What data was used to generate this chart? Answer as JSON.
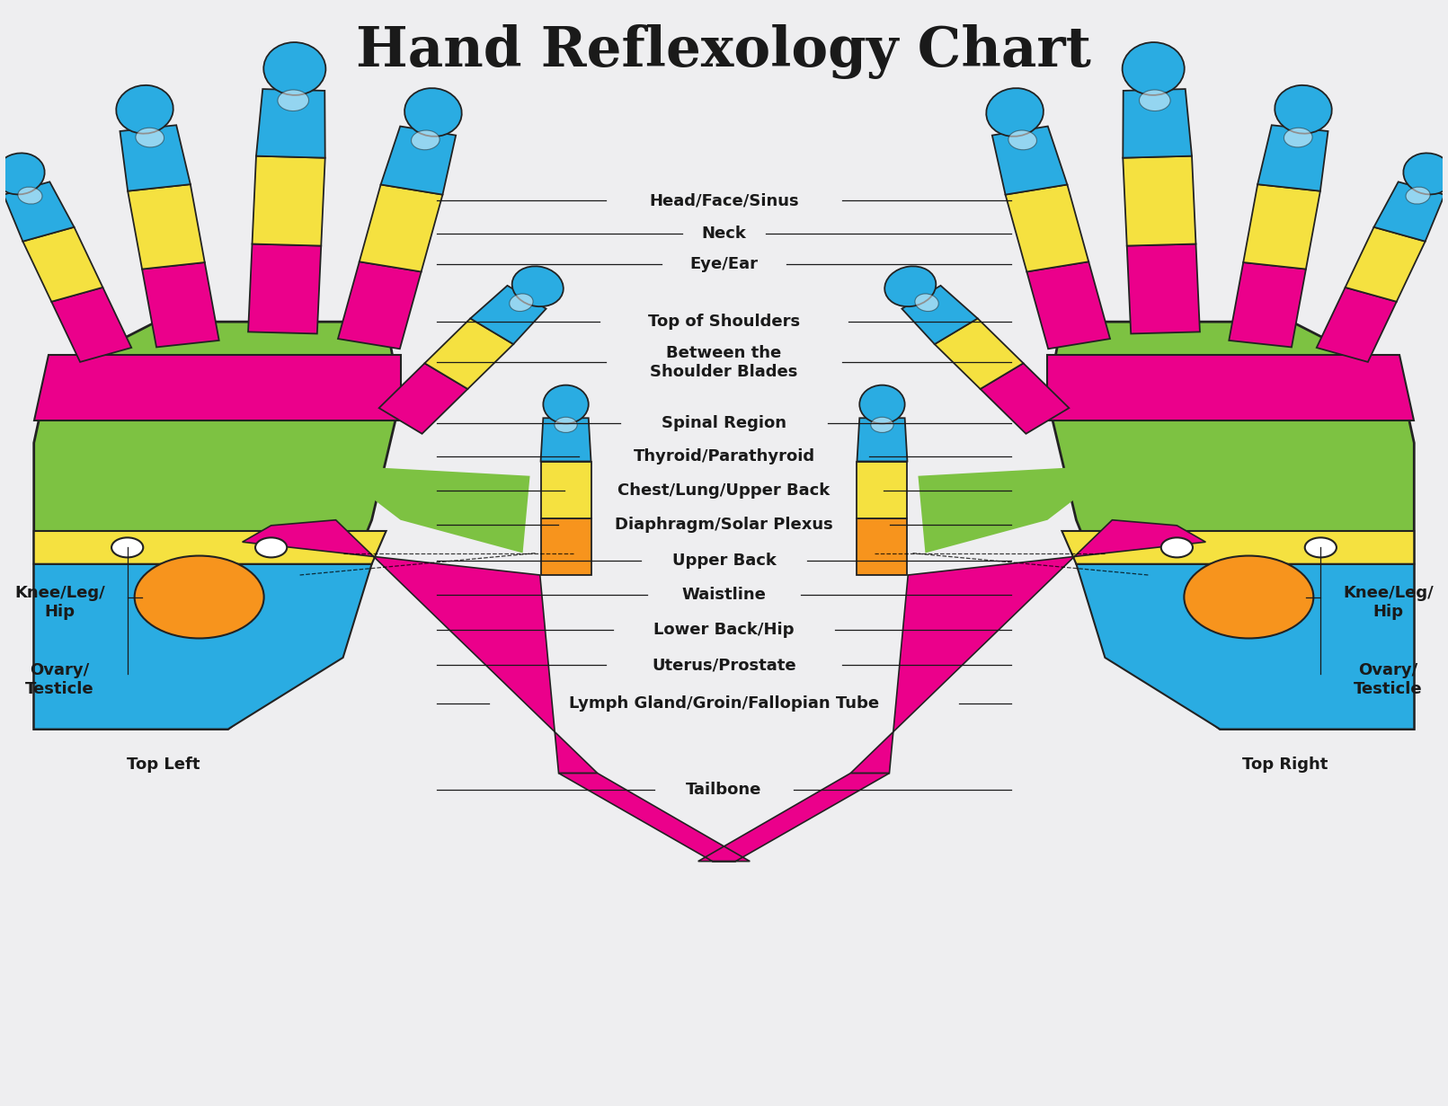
{
  "title": "Hand Reflexology Chart",
  "background_color": "#eeeef0",
  "title_fontsize": 44,
  "title_color": "#1a1a1a",
  "colors": {
    "blue": "#2aace2",
    "yellow": "#f5e140",
    "magenta": "#eb008b",
    "green": "#7dc242",
    "orange": "#f7941d",
    "outline": "#222222",
    "white": "#ffffff",
    "bg": "#eeeef0"
  },
  "labels_center": [
    [
      "Head/Face/Sinus",
      0.82
    ],
    [
      "Neck",
      0.79
    ],
    [
      "Eye/Ear",
      0.762
    ],
    [
      "Top of Shoulders",
      0.71
    ],
    [
      "Between the\nShoulder Blades",
      0.673
    ],
    [
      "Spinal Region",
      0.618
    ],
    [
      "Thyroid/Parathyroid",
      0.588
    ],
    [
      "Chest/Lung/Upper Back",
      0.557
    ],
    [
      "Diaphragm/Solar Plexus",
      0.526
    ],
    [
      "Upper Back",
      0.493
    ],
    [
      "Waistline",
      0.462
    ],
    [
      "Lower Back/Hip",
      0.43
    ],
    [
      "Uterus/Prostate",
      0.398
    ],
    [
      "Lymph Gland/Groin/Fallopian Tube",
      0.363
    ],
    [
      "Tailbone",
      0.285
    ]
  ],
  "label_fontsize": 13
}
